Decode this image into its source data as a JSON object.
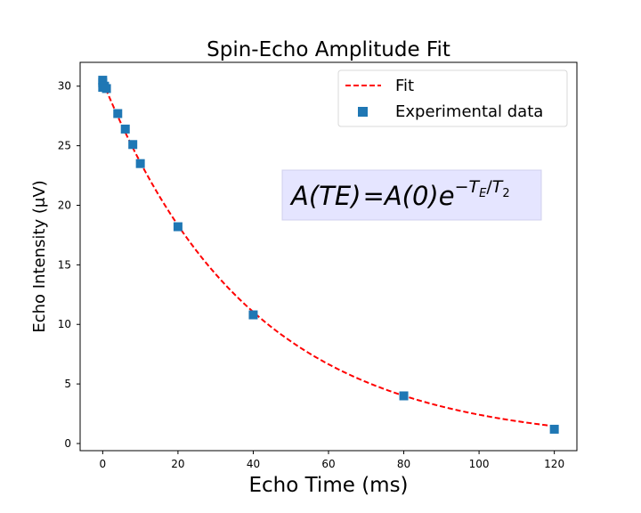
{
  "chart_data": {
    "type": "scatter",
    "title": "Spin-Echo Amplitude Fit",
    "xlabel": "Echo Time (ms)",
    "ylabel": "Echo Intensity (μV)",
    "xlim": [
      -6,
      126
    ],
    "ylim": [
      -0.6,
      32
    ],
    "xticks": [
      0,
      20,
      40,
      60,
      80,
      100,
      120
    ],
    "yticks": [
      0,
      5,
      10,
      15,
      20,
      25,
      30
    ],
    "grid": false,
    "legend_position": "upper-right",
    "series": [
      {
        "name": "Fit",
        "kind": "line",
        "style": "dashed",
        "color": "#ff0000",
        "model": "exponential-decay",
        "A0": 30.4,
        "T2": 39.5,
        "x_range": [
          0,
          120
        ]
      },
      {
        "name": "Experimental data",
        "kind": "scatter",
        "marker": "square",
        "color": "#1f77b4",
        "x": [
          0,
          0,
          0,
          0.5,
          1,
          4,
          6,
          8,
          10,
          20,
          40,
          80,
          120
        ],
        "y": [
          30.5,
          30.3,
          29.9,
          30.0,
          29.8,
          27.7,
          26.4,
          25.1,
          23.5,
          18.2,
          10.8,
          4.0,
          1.2
        ]
      }
    ],
    "annotation": {
      "lhs": "A(TE)",
      "equals": "=",
      "rhs_base": "A(0)e",
      "exponent_sign": "−",
      "exponent_num": "T",
      "exponent_num_sub": "E",
      "exponent_slash": "/",
      "exponent_den": "T",
      "exponent_den_sub": "2",
      "box_color": "#e5e5ff"
    }
  }
}
